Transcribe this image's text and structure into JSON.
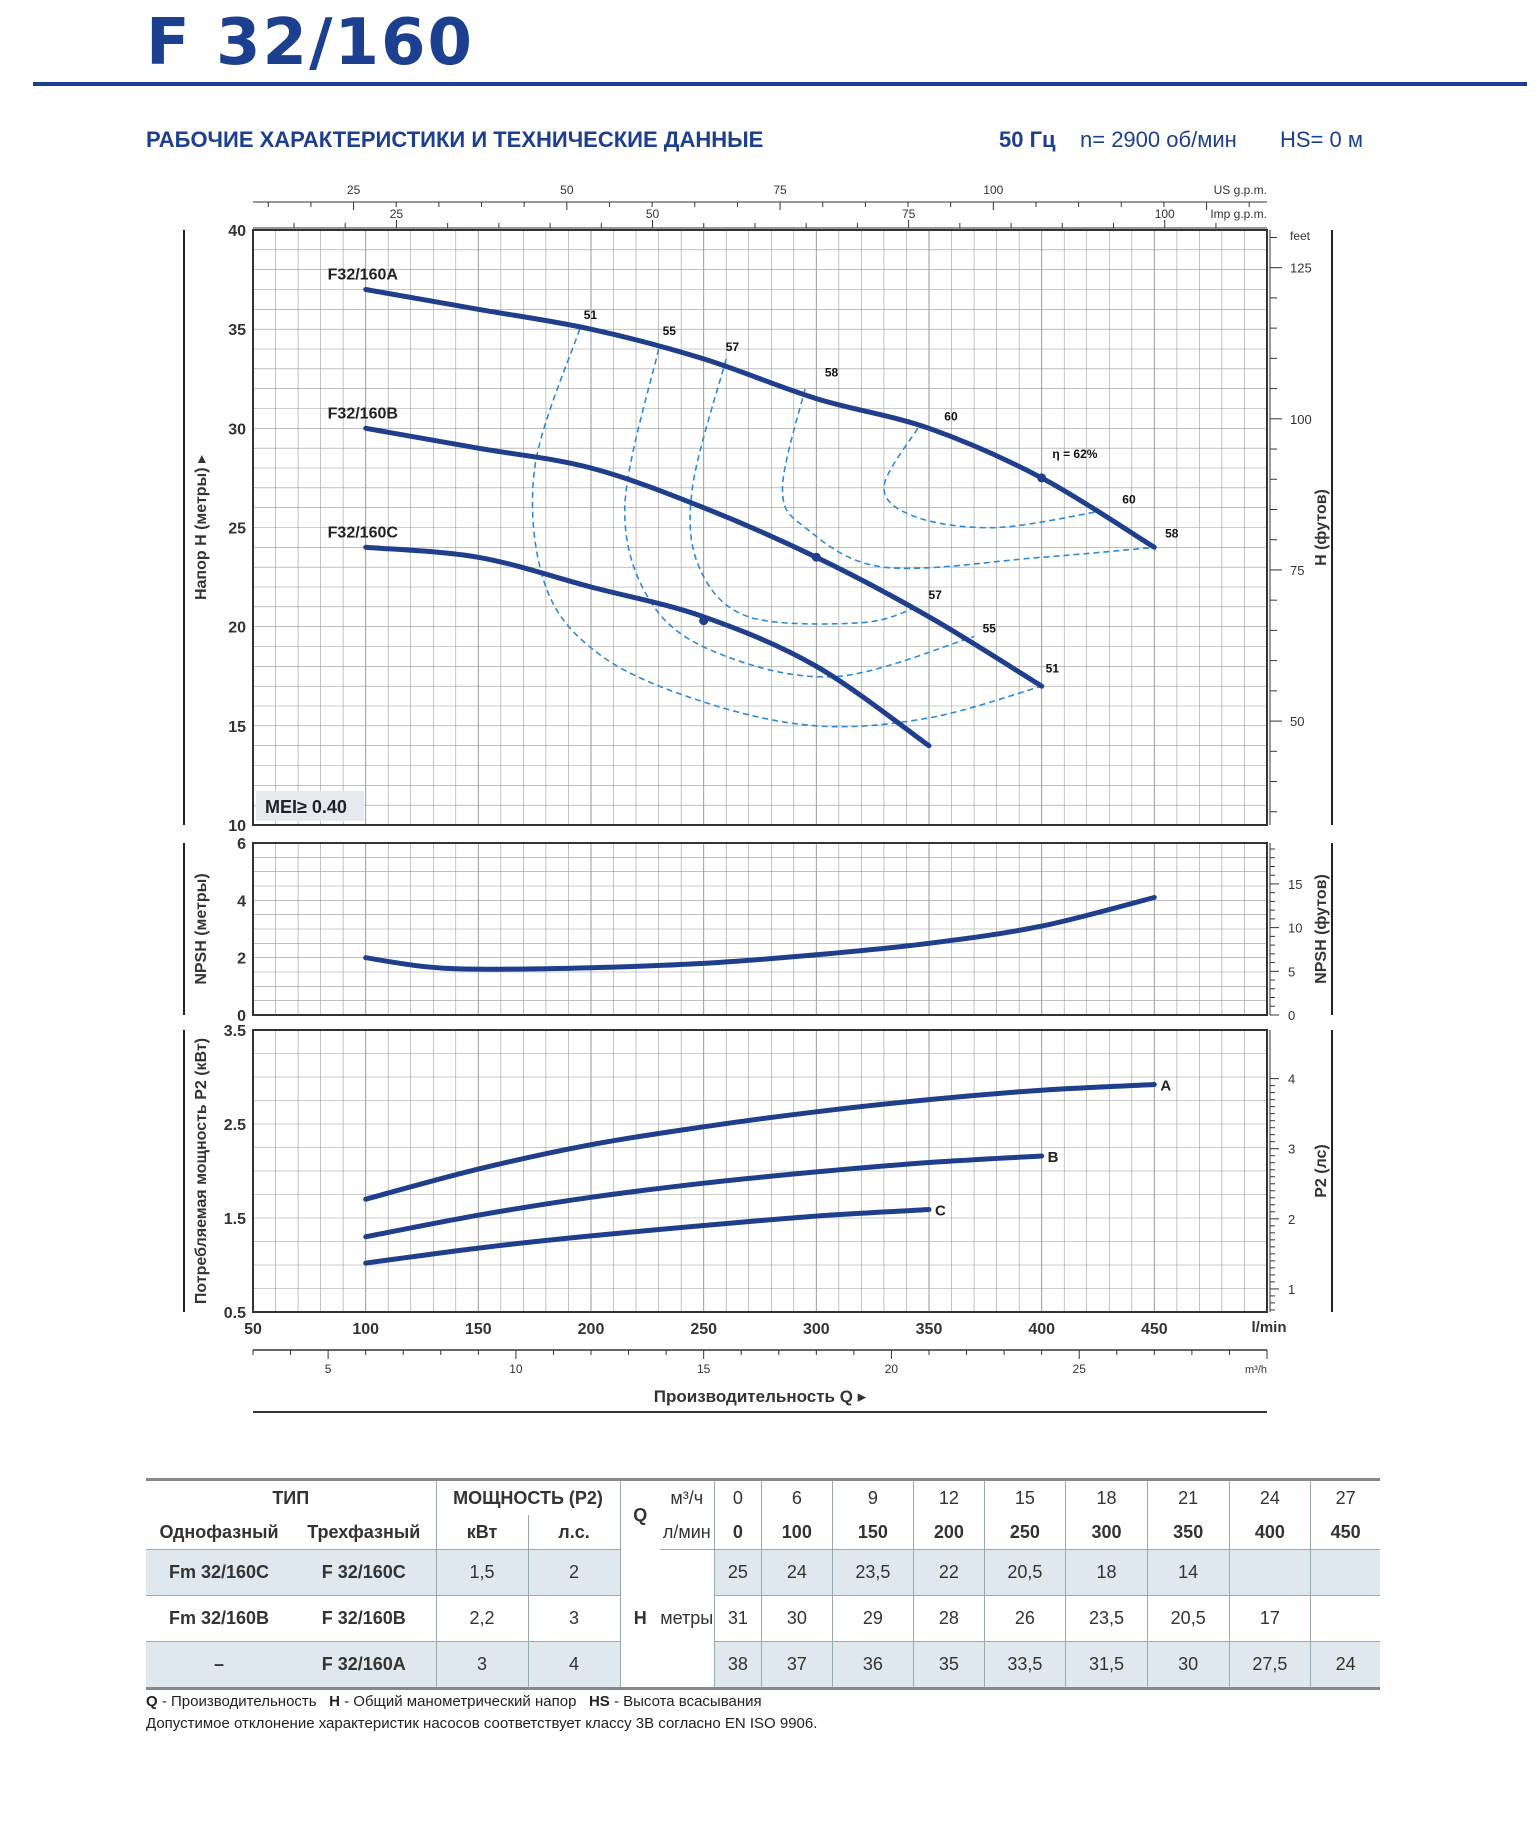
{
  "header": {
    "title": "F 32/160",
    "subtitle": "РАБОЧИЕ ХАРАКТЕРИСТИКИ И ТЕХНИЧЕСКИЕ ДАННЫЕ",
    "frequency": "50 Гц",
    "speed": "n= 2900 об/мин",
    "suction_height": "HS= 0 м"
  },
  "colors": {
    "brand": "#1c3f8f",
    "curve": "#1f3f8c",
    "efficiency": "#2e8bd8",
    "grid": "#9a9a9a",
    "table_shade": "#dfe7ef"
  },
  "chart_data": [
    {
      "type": "line",
      "ylabel": "Напор H (метры)",
      "ylabel_right": "H (футов)",
      "ylim": [
        10,
        40
      ],
      "y_ticks": [
        10,
        15,
        20,
        25,
        30,
        35,
        40
      ],
      "y_right_ticks": [
        50,
        75,
        100,
        125
      ],
      "y_right_unit": "feet",
      "top_axis_us": {
        "label": "US g.p.m.",
        "ticks": [
          25,
          50,
          75,
          100
        ]
      },
      "top_axis_imp": {
        "label": "Imp g.p.m.",
        "ticks": [
          25,
          50,
          75,
          100
        ]
      },
      "badge": "MEI≥ 0.40",
      "series": [
        {
          "name": "F32/160A",
          "x": [
            100,
            150,
            200,
            250,
            300,
            350,
            400,
            450
          ],
          "y": [
            37,
            36,
            35,
            33.5,
            31.5,
            30,
            27.5,
            24
          ]
        },
        {
          "name": "F32/160B",
          "x": [
            100,
            150,
            200,
            250,
            300,
            350,
            400
          ],
          "y": [
            30,
            29,
            28,
            26,
            23.5,
            20.5,
            17
          ]
        },
        {
          "name": "F32/160C",
          "x": [
            100,
            150,
            200,
            250,
            300,
            350
          ],
          "y": [
            24,
            23.5,
            22,
            20.5,
            18,
            14
          ]
        }
      ],
      "efficiency_contours": [
        {
          "label": "51",
          "points": [
            [
              195,
              35
            ],
            [
              175,
              28
            ],
            [
              180,
              22
            ],
            [
              205,
              18.5
            ],
            [
              250,
              16.2
            ],
            [
              300,
              15
            ],
            [
              350,
              15.4
            ],
            [
              400,
              17
            ]
          ]
        },
        {
          "label": "55",
          "points": [
            [
              230,
              34
            ],
            [
              215,
              26
            ],
            [
              228,
              21
            ],
            [
              260,
              18.5
            ],
            [
              310,
              17.5
            ],
            [
              370,
              19.5
            ]
          ]
        },
        {
          "label": "57",
          "points": [
            [
              260,
              33.5
            ],
            [
              245,
              27
            ],
            [
              248,
              23
            ],
            [
              270,
              20.5
            ],
            [
              320,
              20.2
            ],
            [
              345,
              21
            ]
          ]
        },
        {
          "label": "58",
          "points": [
            [
              295,
              32
            ],
            [
              285,
              27
            ],
            [
              295,
              25
            ],
            [
              330,
              23
            ],
            [
              400,
              23.5
            ],
            [
              450,
              24
            ]
          ]
        },
        {
          "label": "60",
          "points": [
            [
              345,
              30
            ],
            [
              330,
              27
            ],
            [
              345,
              25.5
            ],
            [
              380,
              25
            ],
            [
              425,
              25.8
            ]
          ]
        }
      ],
      "efficiency_labels": [
        {
          "text": "51",
          "x": 195,
          "y": 35.3
        },
        {
          "text": "55",
          "x": 230,
          "y": 34.5
        },
        {
          "text": "57",
          "x": 258,
          "y": 33.7
        },
        {
          "text": "58",
          "x": 302,
          "y": 32.4
        },
        {
          "text": "60",
          "x": 355,
          "y": 30.2
        },
        {
          "text": "η = 62%",
          "x": 403,
          "y": 28.3
        },
        {
          "text": "60",
          "x": 434,
          "y": 26
        },
        {
          "text": "58",
          "x": 453,
          "y": 24.3
        },
        {
          "text": "57",
          "x": 348,
          "y": 21.2
        },
        {
          "text": "55",
          "x": 372,
          "y": 19.5
        },
        {
          "text": "51",
          "x": 400,
          "y": 17.5
        }
      ],
      "bep_points": [
        [
          400,
          27.5
        ],
        [
          300,
          23.5
        ],
        [
          250,
          20.3
        ]
      ]
    },
    {
      "type": "line",
      "ylabel": "NPSH (метры)",
      "ylabel_right": "NPSH (футов)",
      "ylim": [
        0,
        6
      ],
      "y_ticks": [
        0,
        2,
        4,
        6
      ],
      "y_right_ticks": [
        0,
        5,
        10,
        15
      ],
      "series": [
        {
          "name": "",
          "x": [
            100,
            125,
            150,
            200,
            250,
            300,
            350,
            400,
            450
          ],
          "y": [
            2.0,
            1.7,
            1.6,
            1.65,
            1.8,
            2.1,
            2.5,
            3.1,
            4.1
          ]
        }
      ]
    },
    {
      "type": "line",
      "ylabel": "Потребляемая мощность P2 (кВт)",
      "ylabel_right": "P2 (лс)",
      "ylim": [
        0.5,
        3.5
      ],
      "y_ticks": [
        0.5,
        1.5,
        2.5,
        3.5
      ],
      "y_right_ticks": [
        1,
        2,
        3,
        4
      ],
      "xlabel": "Производительность Q",
      "x_ticks_lmin": [
        50,
        100,
        150,
        200,
        250,
        300,
        350,
        400,
        450
      ],
      "x_unit_lmin": "l/min",
      "x_ticks_m3h": [
        5,
        10,
        15,
        20,
        25
      ],
      "x_unit_m3h": "m³/h",
      "series": [
        {
          "name": "A",
          "x": [
            100,
            150,
            200,
            250,
            300,
            350,
            400,
            450
          ],
          "y": [
            1.7,
            2.02,
            2.28,
            2.47,
            2.63,
            2.76,
            2.86,
            2.92
          ]
        },
        {
          "name": "B",
          "x": [
            100,
            150,
            200,
            250,
            300,
            350,
            400
          ],
          "y": [
            1.3,
            1.53,
            1.72,
            1.87,
            1.99,
            2.09,
            2.16
          ]
        },
        {
          "name": "C",
          "x": [
            100,
            150,
            200,
            250,
            300,
            350
          ],
          "y": [
            1.02,
            1.18,
            1.31,
            1.42,
            1.52,
            1.59
          ]
        }
      ]
    }
  ],
  "table": {
    "type_header": "ТИП",
    "power_header": "МОЩНОСТЬ (P2)",
    "col_single": "Однофазный",
    "col_three": "Трехфазный",
    "col_kw": "кВт",
    "col_hp": "л.с.",
    "q_symbol": "Q",
    "q_unit_m3": "м³/ч",
    "q_unit_l": "л/мин",
    "q_m3h": [
      "0",
      "6",
      "9",
      "12",
      "15",
      "18",
      "21",
      "24",
      "27"
    ],
    "q_lmin": [
      "0",
      "100",
      "150",
      "200",
      "250",
      "300",
      "350",
      "400",
      "450"
    ],
    "h_symbol": "H",
    "h_unit": "метры",
    "rows": [
      {
        "single": "Fm 32/160C",
        "three": "F 32/160C",
        "kw": "1,5",
        "hp": "2",
        "h": [
          "25",
          "24",
          "23,5",
          "22",
          "20,5",
          "18",
          "14",
          "",
          ""
        ]
      },
      {
        "single": "Fm 32/160B",
        "three": "F 32/160B",
        "kw": "2,2",
        "hp": "3",
        "h": [
          "31",
          "30",
          "29",
          "28",
          "26",
          "23,5",
          "20,5",
          "17",
          ""
        ]
      },
      {
        "single": "–",
        "three": "F 32/160A",
        "kw": "3",
        "hp": "4",
        "h": [
          "38",
          "37",
          "36",
          "35",
          "33,5",
          "31,5",
          "30",
          "27,5",
          "24"
        ]
      }
    ]
  },
  "footnotes": {
    "q_abbr": "Q",
    "q_text": " - Производительность",
    "h_abbr": "H",
    "h_text": " - Общий манометрический напор",
    "hs_abbr": "HS",
    "hs_text": " - Высота всасывания",
    "tolerance": "Допустимое отклонение характеристик насосов соответствует классу 3B согласно EN ISO 9906."
  }
}
